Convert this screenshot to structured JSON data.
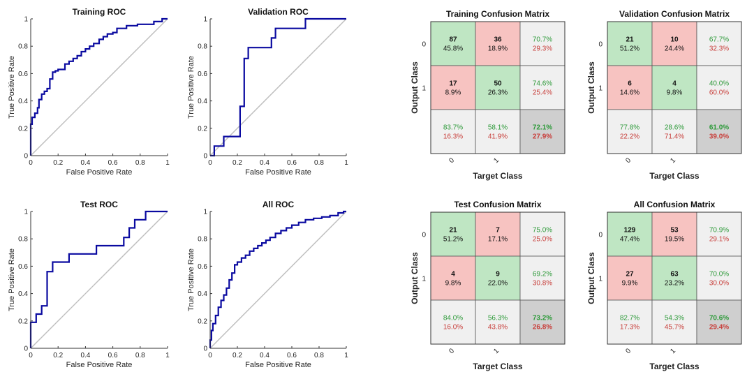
{
  "roc_axis": {
    "xlabel": "False Positive Rate",
    "ylabel": "True Positive Rate",
    "ticks": [
      "0",
      "0.2",
      "0.4",
      "0.6",
      "0.8",
      "1"
    ],
    "xticks": [
      "0",
      "0.2",
      "0.4",
      "0.6",
      "0.8",
      "1"
    ]
  },
  "cm_axis": {
    "xlabel": "Target Class",
    "ylabel": "Output Class",
    "classes": [
      "0",
      "1"
    ]
  },
  "colors": {
    "roc_line": "#0a0aa0",
    "diagonal": "#bfbfbf",
    "cell_green": "#bfe6c3",
    "cell_red": "#f7c3c1",
    "cell_gray": "#f0f0f0",
    "cell_total": "#cfcfcf",
    "text_green": "#2e9a3a",
    "text_red": "#c8403c"
  },
  "chart_data": [
    {
      "type": "line",
      "title": "Training ROC",
      "xlabel": "False Positive Rate",
      "ylabel": "True Positive Rate",
      "xlim": [
        0,
        1
      ],
      "ylim": [
        0,
        1
      ],
      "series": [
        {
          "x": [
            0,
            0,
            0.01,
            0.01,
            0.03,
            0.03,
            0.05,
            0.05,
            0.06,
            0.06,
            0.08,
            0.08,
            0.1,
            0.1,
            0.12,
            0.12,
            0.14,
            0.14,
            0.16,
            0.16,
            0.18,
            0.18,
            0.2,
            0.2,
            0.25,
            0.25,
            0.28,
            0.28,
            0.31,
            0.31,
            0.34,
            0.34,
            0.37,
            0.37,
            0.4,
            0.4,
            0.43,
            0.43,
            0.46,
            0.46,
            0.5,
            0.5,
            0.53,
            0.53,
            0.56,
            0.56,
            0.6,
            0.6,
            0.63,
            0.63,
            0.7,
            0.7,
            0.78,
            0.78,
            0.9,
            0.9,
            0.96,
            0.96,
            1
          ],
          "y": [
            0,
            0.23,
            0.23,
            0.28,
            0.28,
            0.31,
            0.31,
            0.35,
            0.35,
            0.41,
            0.41,
            0.45,
            0.45,
            0.47,
            0.47,
            0.49,
            0.49,
            0.56,
            0.56,
            0.61,
            0.61,
            0.62,
            0.62,
            0.63,
            0.63,
            0.67,
            0.67,
            0.69,
            0.69,
            0.71,
            0.71,
            0.73,
            0.73,
            0.76,
            0.76,
            0.78,
            0.78,
            0.8,
            0.8,
            0.82,
            0.82,
            0.85,
            0.85,
            0.87,
            0.87,
            0.89,
            0.89,
            0.9,
            0.9,
            0.93,
            0.93,
            0.95,
            0.95,
            0.96,
            0.96,
            0.98,
            0.98,
            1,
            1
          ]
        }
      ]
    },
    {
      "type": "line",
      "title": "Validation ROC",
      "xlabel": "False Positive Rate",
      "ylabel": "True Positive Rate",
      "xlim": [
        0,
        1
      ],
      "ylim": [
        0,
        1
      ],
      "series": [
        {
          "x": [
            0,
            0.03,
            0.03,
            0.1,
            0.1,
            0.22,
            0.22,
            0.25,
            0.25,
            0.28,
            0.28,
            0.3,
            0.3,
            0.45,
            0.45,
            0.48,
            0.48,
            0.7,
            0.7,
            1
          ],
          "y": [
            0,
            0,
            0.07,
            0.07,
            0.14,
            0.14,
            0.36,
            0.36,
            0.71,
            0.71,
            0.79,
            0.79,
            0.79,
            0.79,
            0.86,
            0.86,
            0.93,
            0.93,
            1,
            1
          ]
        }
      ]
    },
    {
      "type": "line",
      "title": "Test ROC",
      "xlabel": "False Positive Rate",
      "ylabel": "True Positive Rate",
      "xlim": [
        0,
        1
      ],
      "ylim": [
        0,
        1
      ],
      "series": [
        {
          "x": [
            0,
            0,
            0.04,
            0.04,
            0.08,
            0.08,
            0.12,
            0.12,
            0.16,
            0.16,
            0.28,
            0.28,
            0.48,
            0.48,
            0.68,
            0.68,
            0.72,
            0.72,
            0.76,
            0.76,
            0.84,
            0.84,
            1
          ],
          "y": [
            0,
            0.19,
            0.19,
            0.25,
            0.25,
            0.31,
            0.31,
            0.56,
            0.56,
            0.63,
            0.63,
            0.69,
            0.69,
            0.75,
            0.75,
            0.81,
            0.81,
            0.88,
            0.88,
            0.94,
            0.94,
            1,
            1
          ]
        }
      ]
    },
    {
      "type": "line",
      "title": "All ROC",
      "xlabel": "False Positive Rate",
      "ylabel": "True Positive Rate",
      "xlim": [
        0,
        1
      ],
      "ylim": [
        0,
        1
      ],
      "series": [
        {
          "x": [
            0,
            0,
            0.01,
            0.01,
            0.02,
            0.02,
            0.04,
            0.04,
            0.06,
            0.06,
            0.08,
            0.08,
            0.1,
            0.1,
            0.12,
            0.12,
            0.14,
            0.14,
            0.16,
            0.16,
            0.18,
            0.18,
            0.2,
            0.2,
            0.23,
            0.23,
            0.26,
            0.26,
            0.29,
            0.29,
            0.32,
            0.32,
            0.35,
            0.35,
            0.38,
            0.38,
            0.41,
            0.41,
            0.44,
            0.44,
            0.48,
            0.48,
            0.52,
            0.52,
            0.56,
            0.56,
            0.6,
            0.6,
            0.65,
            0.65,
            0.7,
            0.7,
            0.76,
            0.76,
            0.82,
            0.82,
            0.88,
            0.88,
            0.94,
            0.94,
            0.98,
            0.98,
            1
          ],
          "y": [
            0,
            0.06,
            0.06,
            0.13,
            0.13,
            0.18,
            0.18,
            0.24,
            0.24,
            0.3,
            0.3,
            0.35,
            0.35,
            0.39,
            0.39,
            0.44,
            0.44,
            0.5,
            0.5,
            0.55,
            0.55,
            0.61,
            0.61,
            0.63,
            0.63,
            0.66,
            0.66,
            0.68,
            0.68,
            0.71,
            0.71,
            0.73,
            0.73,
            0.75,
            0.75,
            0.77,
            0.77,
            0.79,
            0.79,
            0.81,
            0.81,
            0.84,
            0.84,
            0.86,
            0.86,
            0.88,
            0.88,
            0.9,
            0.9,
            0.92,
            0.92,
            0.94,
            0.94,
            0.95,
            0.95,
            0.96,
            0.96,
            0.97,
            0.97,
            0.99,
            0.99,
            1,
            1
          ]
        }
      ]
    },
    {
      "type": "table",
      "title": "Training Confusion Matrix",
      "xlabel": "Target Class",
      "ylabel": "Output Class",
      "classes": [
        "0",
        "1"
      ],
      "cells": [
        [
          {
            "count": "87",
            "pct": "45.8%"
          },
          {
            "count": "36",
            "pct": "18.9%"
          }
        ],
        [
          {
            "count": "17",
            "pct": "8.9%"
          },
          {
            "count": "50",
            "pct": "26.3%"
          }
        ]
      ],
      "row_summary": [
        [
          "70.7%",
          "29.3%"
        ],
        [
          "74.6%",
          "25.4%"
        ]
      ],
      "col_summary": [
        [
          "83.7%",
          "16.3%"
        ],
        [
          "58.1%",
          "41.9%"
        ]
      ],
      "total": [
        "72.1%",
        "27.9%"
      ]
    },
    {
      "type": "table",
      "title": "Validation Confusion Matrix",
      "xlabel": "Target Class",
      "ylabel": "Output Class",
      "classes": [
        "0",
        "1"
      ],
      "cells": [
        [
          {
            "count": "21",
            "pct": "51.2%"
          },
          {
            "count": "10",
            "pct": "24.4%"
          }
        ],
        [
          {
            "count": "6",
            "pct": "14.6%"
          },
          {
            "count": "4",
            "pct": "9.8%"
          }
        ]
      ],
      "row_summary": [
        [
          "67.7%",
          "32.3%"
        ],
        [
          "40.0%",
          "60.0%"
        ]
      ],
      "col_summary": [
        [
          "77.8%",
          "22.2%"
        ],
        [
          "28.6%",
          "71.4%"
        ]
      ],
      "total": [
        "61.0%",
        "39.0%"
      ]
    },
    {
      "type": "table",
      "title": "Test Confusion Matrix",
      "xlabel": "Target Class",
      "ylabel": "Output Class",
      "classes": [
        "0",
        "1"
      ],
      "cells": [
        [
          {
            "count": "21",
            "pct": "51.2%"
          },
          {
            "count": "7",
            "pct": "17.1%"
          }
        ],
        [
          {
            "count": "4",
            "pct": "9.8%"
          },
          {
            "count": "9",
            "pct": "22.0%"
          }
        ]
      ],
      "row_summary": [
        [
          "75.0%",
          "25.0%"
        ],
        [
          "69.2%",
          "30.8%"
        ]
      ],
      "col_summary": [
        [
          "84.0%",
          "16.0%"
        ],
        [
          "56.3%",
          "43.8%"
        ]
      ],
      "total": [
        "73.2%",
        "26.8%"
      ]
    },
    {
      "type": "table",
      "title": "All Confusion Matrix",
      "xlabel": "Target Class",
      "ylabel": "Output Class",
      "classes": [
        "0",
        "1"
      ],
      "cells": [
        [
          {
            "count": "129",
            "pct": "47.4%"
          },
          {
            "count": "53",
            "pct": "19.5%"
          }
        ],
        [
          {
            "count": "27",
            "pct": "9.9%"
          },
          {
            "count": "63",
            "pct": "23.2%"
          }
        ]
      ],
      "row_summary": [
        [
          "70.9%",
          "29.1%"
        ],
        [
          "70.0%",
          "30.0%"
        ]
      ],
      "col_summary": [
        [
          "82.7%",
          "17.3%"
        ],
        [
          "54.3%",
          "45.7%"
        ]
      ],
      "total": [
        "70.6%",
        "29.4%"
      ]
    }
  ]
}
